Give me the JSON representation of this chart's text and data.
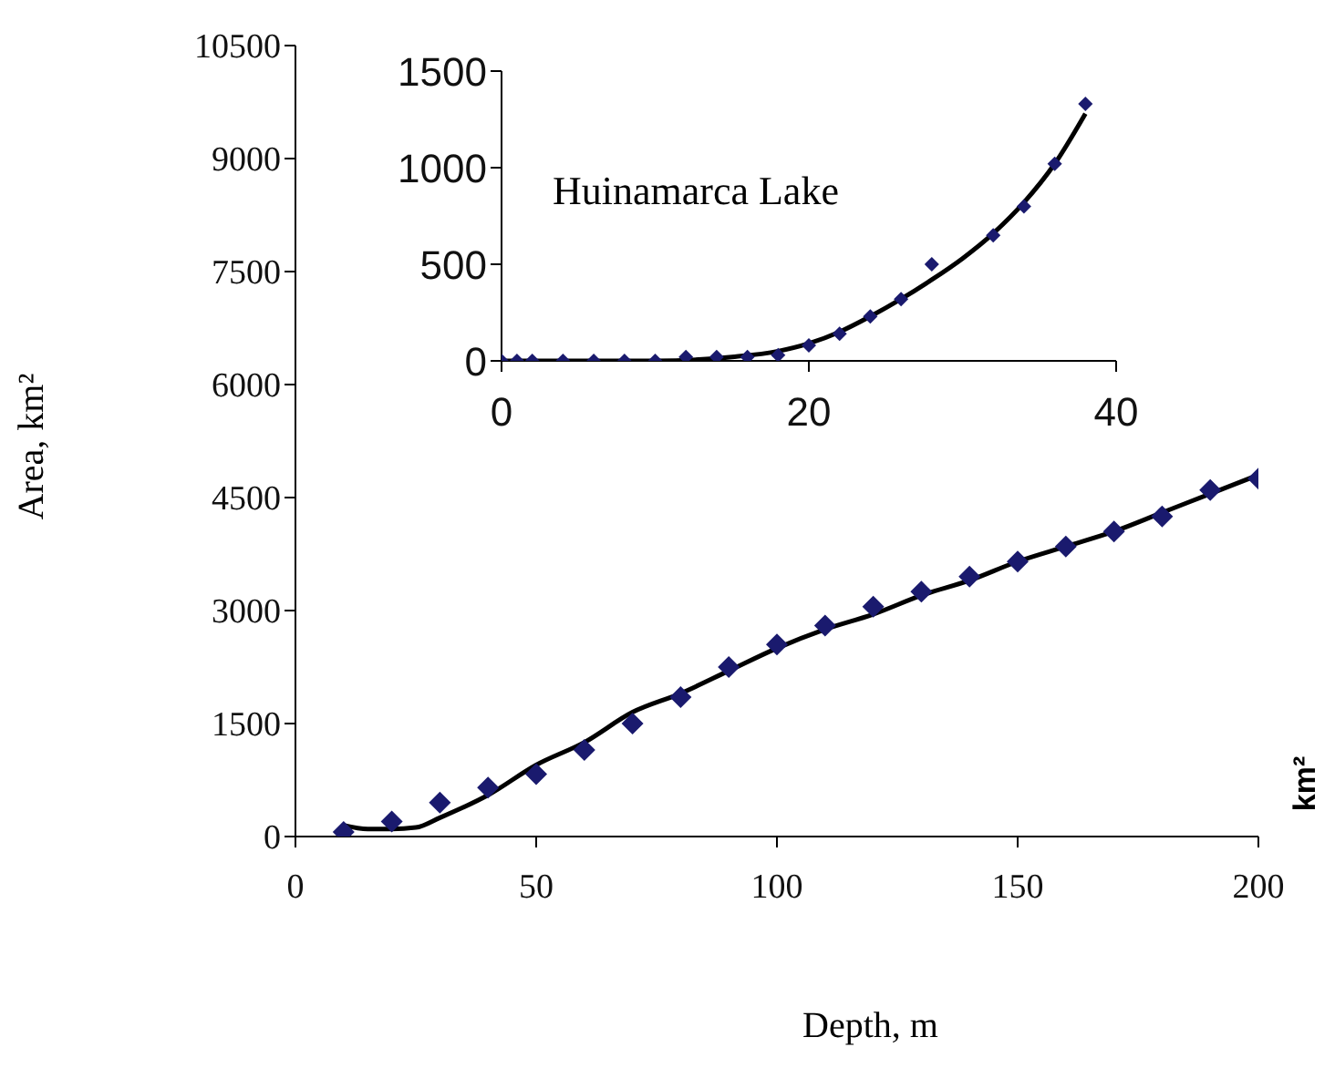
{
  "chart_data": [
    {
      "type": "scatter",
      "xlabel": "Depth, m",
      "ylabel": "Area, km²",
      "xlim": [
        0,
        200
      ],
      "ylim": [
        0,
        10500
      ],
      "xticks": [
        0,
        50,
        100,
        150,
        200
      ],
      "yticks": [
        0,
        1500,
        3000,
        4500,
        6000,
        7500,
        9000,
        10500
      ],
      "marker": "diamond",
      "annotations": [
        "km²"
      ],
      "series": [
        {
          "color": "#1a1a6e",
          "x": [
            10,
            20,
            30,
            40,
            50,
            60,
            70,
            80,
            90,
            100,
            110,
            120,
            130,
            140,
            150,
            160,
            170,
            180,
            190,
            200
          ],
          "values": [
            60,
            200,
            450,
            650,
            830,
            1150,
            1500,
            1850,
            2250,
            2550,
            2800,
            3050,
            3250,
            3450,
            3650,
            3850,
            4050,
            4250,
            4600,
            4750
          ]
        },
        {
          "type": "line",
          "color": "#000000",
          "marker": "none",
          "x": [
            10,
            15,
            20,
            25,
            30,
            40,
            50,
            60,
            70,
            80,
            90,
            100,
            110,
            120,
            130,
            140,
            150,
            160,
            170,
            180,
            190,
            200
          ],
          "values": [
            150,
            100,
            100,
            120,
            250,
            550,
            950,
            1250,
            1650,
            1900,
            2200,
            2500,
            2750,
            2950,
            3200,
            3400,
            3650,
            3850,
            4050,
            4300,
            4550,
            4800
          ]
        }
      ]
    },
    {
      "type": "scatter",
      "title": "Huinamarca Lake",
      "xlim": [
        0,
        40
      ],
      "ylim": [
        0,
        1500
      ],
      "xticks": [
        0,
        20,
        40
      ],
      "yticks": [
        0,
        500,
        1000,
        1500
      ],
      "marker": "diamond",
      "series": [
        {
          "color": "#1a1a6e",
          "x": [
            0,
            1,
            2,
            4,
            6,
            8,
            10,
            12,
            14,
            16,
            18,
            20,
            22,
            24,
            26,
            28,
            32,
            34,
            36,
            38
          ],
          "values": [
            0,
            0,
            0,
            0,
            0,
            0,
            0,
            20,
            20,
            20,
            30,
            80,
            140,
            230,
            320,
            500,
            650,
            800,
            1020,
            1330
          ]
        },
        {
          "type": "line",
          "color": "#000000",
          "marker": "none",
          "x": [
            0,
            10,
            15,
            18,
            20,
            22,
            24,
            26,
            28,
            30,
            32,
            34,
            36,
            38
          ],
          "values": [
            0,
            0,
            20,
            50,
            90,
            150,
            230,
            320,
            420,
            530,
            660,
            820,
            1020,
            1280
          ]
        }
      ]
    }
  ]
}
